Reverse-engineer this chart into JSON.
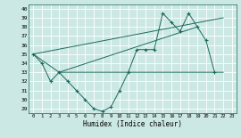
{
  "background_color": "#cce8e4",
  "grid_color": "#ffffff",
  "line_color": "#1a6b5e",
  "xlabel": "Humidex (Indice chaleur)",
  "ylim": [
    28.5,
    40.5
  ],
  "yticks": [
    29,
    30,
    31,
    32,
    33,
    34,
    35,
    36,
    37,
    38,
    39,
    40
  ],
  "xticks": [
    0,
    1,
    2,
    3,
    4,
    5,
    6,
    7,
    8,
    9,
    10,
    11,
    12,
    13,
    14,
    15,
    16,
    17,
    18,
    19,
    20,
    21,
    22,
    23
  ],
  "series1_x": [
    0,
    1,
    2,
    3,
    4,
    5,
    6,
    7,
    8,
    9,
    10,
    11,
    12,
    13,
    14,
    15,
    16,
    17,
    18,
    19,
    20,
    21
  ],
  "series1_y": [
    35,
    34,
    32,
    33,
    32,
    31,
    30,
    29,
    28.7,
    29.2,
    31,
    33,
    35.5,
    35.5,
    35.5,
    39.5,
    38.5,
    37.5,
    39.5,
    38,
    36.5,
    33
  ],
  "line2_x": [
    0,
    3,
    10,
    22
  ],
  "line2_y": [
    35,
    33,
    33,
    33
  ],
  "line3_x": [
    0,
    22
  ],
  "line3_y": [
    35,
    39
  ],
  "line4_x": [
    3,
    19
  ],
  "line4_y": [
    33,
    38
  ]
}
